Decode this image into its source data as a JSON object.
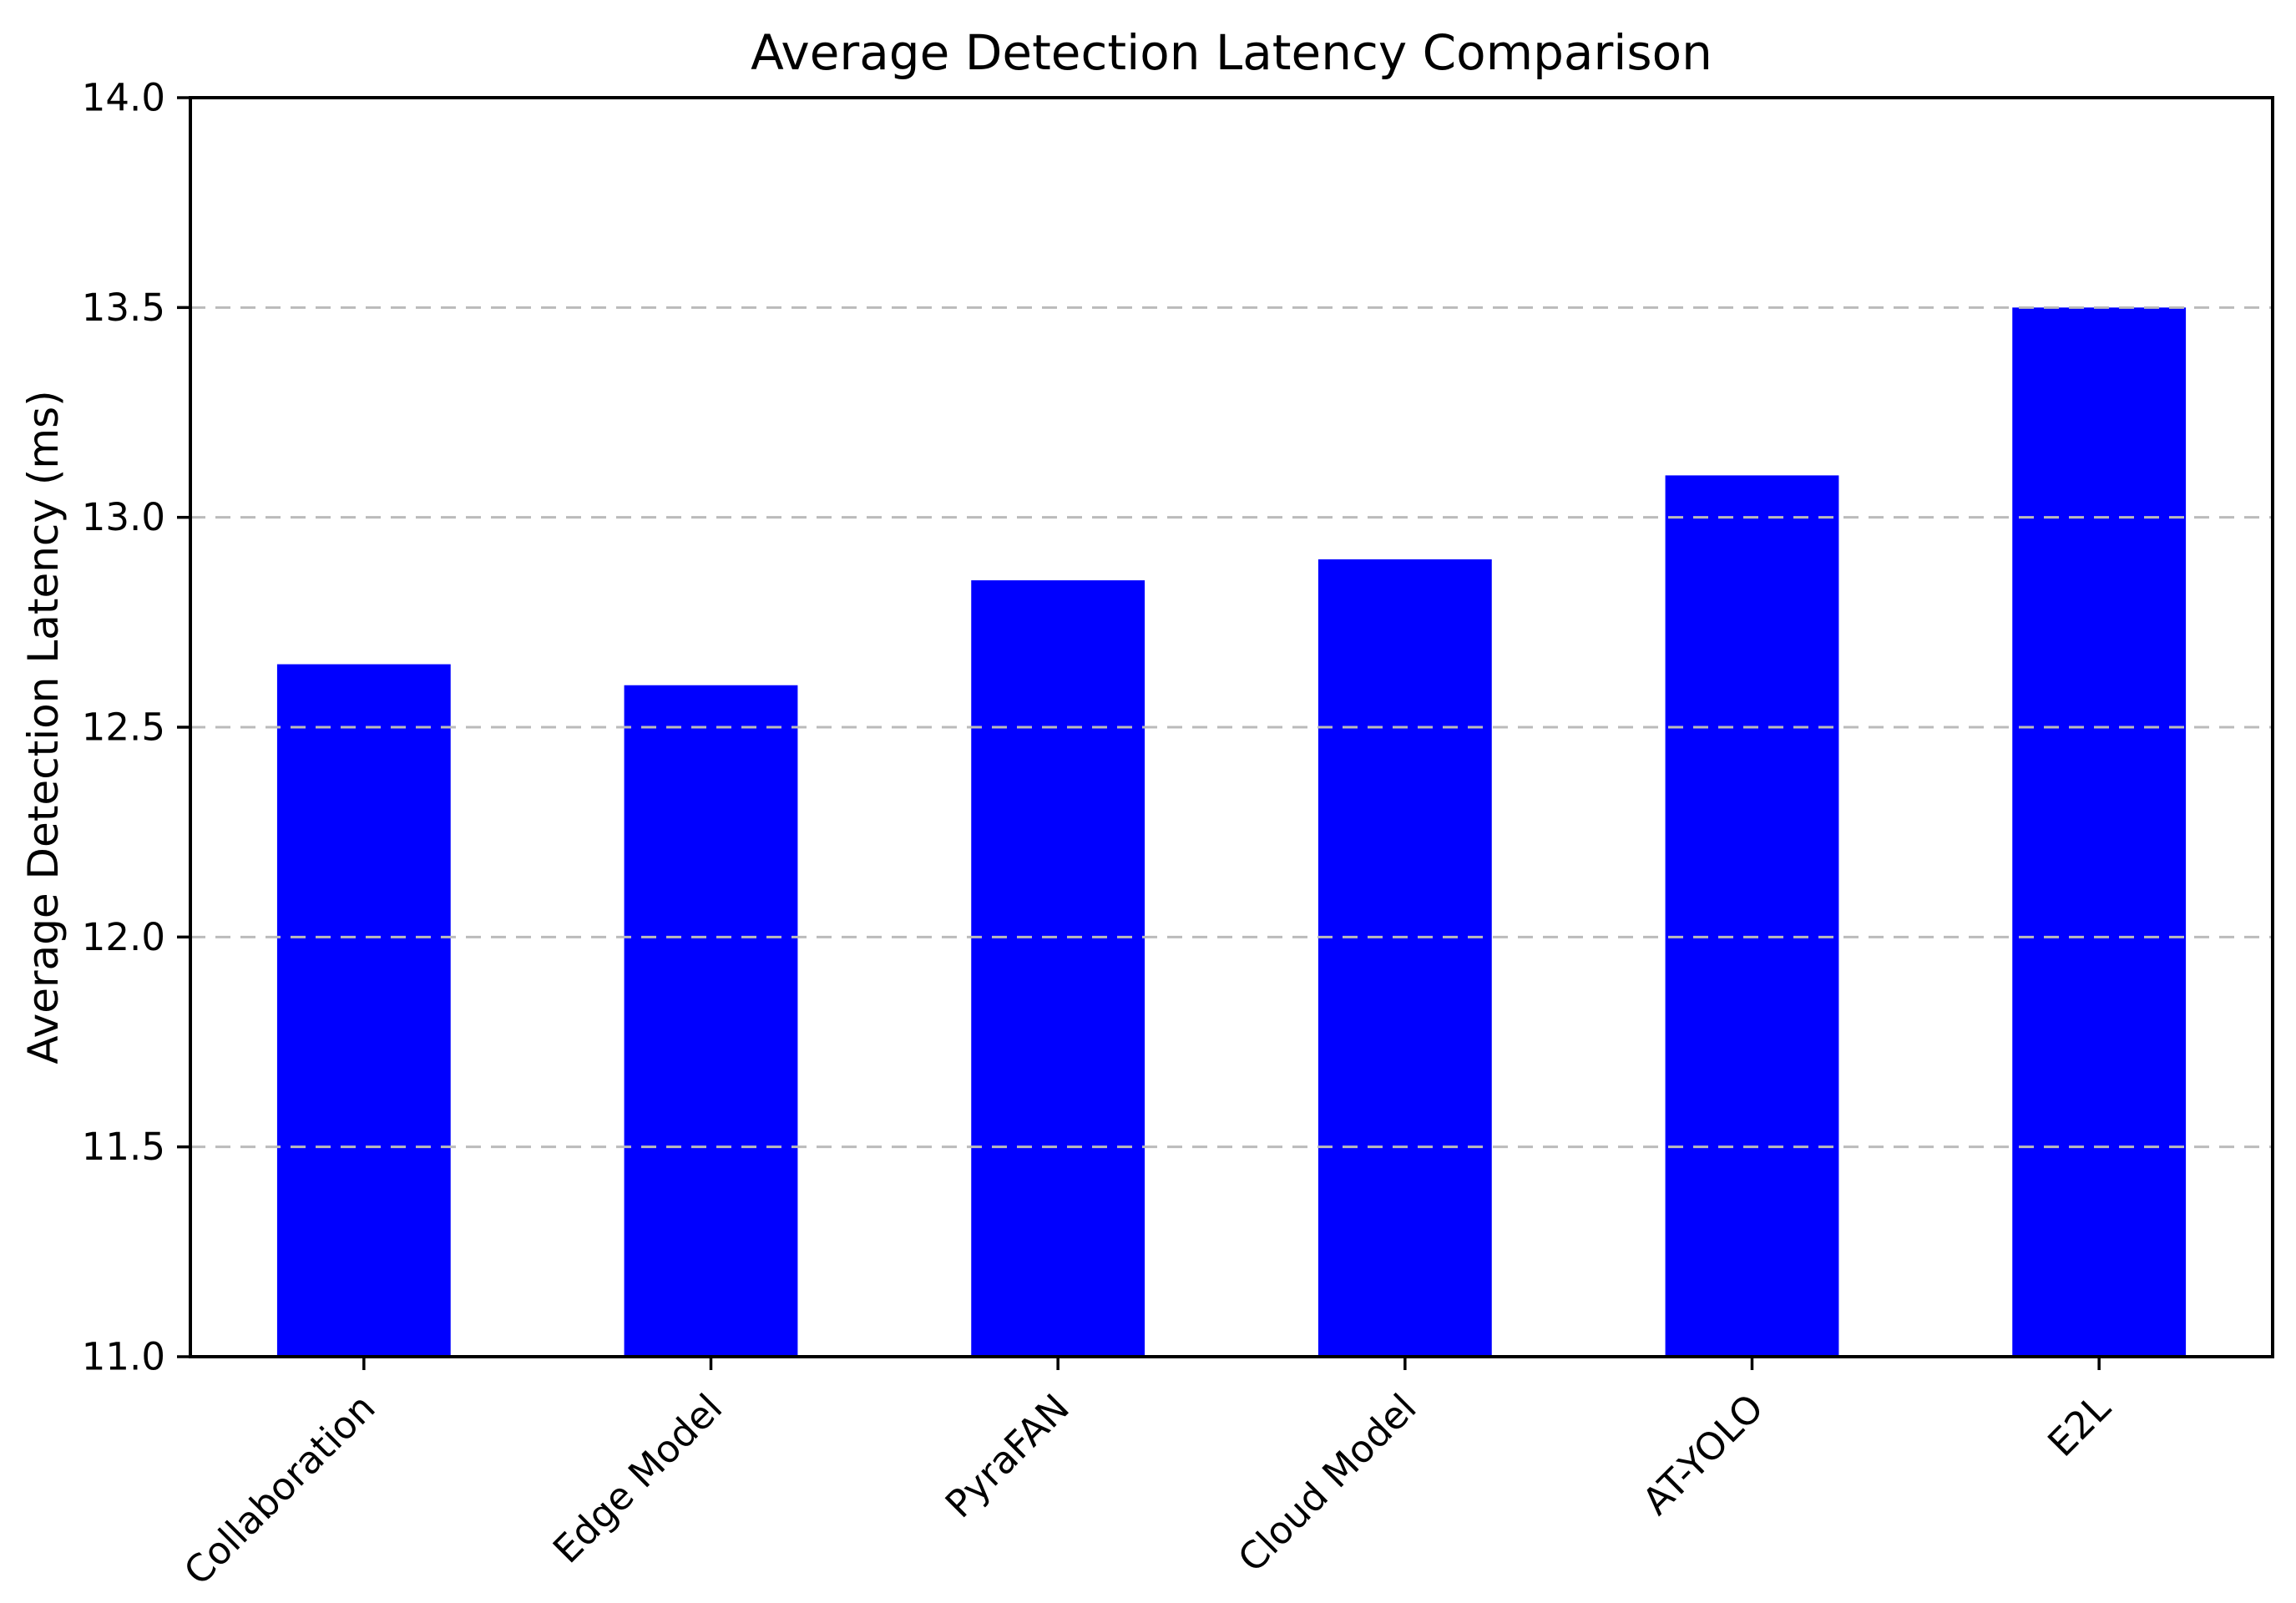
{
  "figure": {
    "background_color": "#ffffff"
  },
  "chart_data": {
    "type": "bar",
    "title": "Average Detection Latency Comparison",
    "xlabel": "",
    "ylabel": "Average Detection Latency (ms)",
    "categories": [
      "Collaboration",
      "Edge Model",
      "PyraFAN",
      "Cloud Model",
      "AT-YOLO",
      "E2L"
    ],
    "values": [
      12.65,
      12.6,
      12.85,
      12.9,
      13.1,
      13.5
    ],
    "unit": "ms",
    "ylim": [
      11.0,
      14.0
    ],
    "yticks": [
      11.0,
      11.5,
      12.0,
      12.5,
      13.0,
      13.5,
      14.0
    ],
    "ytick_labels": [
      "11.0",
      "11.5",
      "12.0",
      "12.5",
      "13.0",
      "13.5",
      "14.0"
    ],
    "x_tick_rotation_deg": 45,
    "bar_color": "#0000ff",
    "bar_width_fraction": 0.5,
    "grid": true,
    "grid_orientation": "horizontal",
    "grid_style": "dashed",
    "grid_color": "#bbbbbb",
    "grid_above_bars": true,
    "axis_color": "#000000",
    "tick_label_color": "#000000",
    "legend_position": "none"
  }
}
